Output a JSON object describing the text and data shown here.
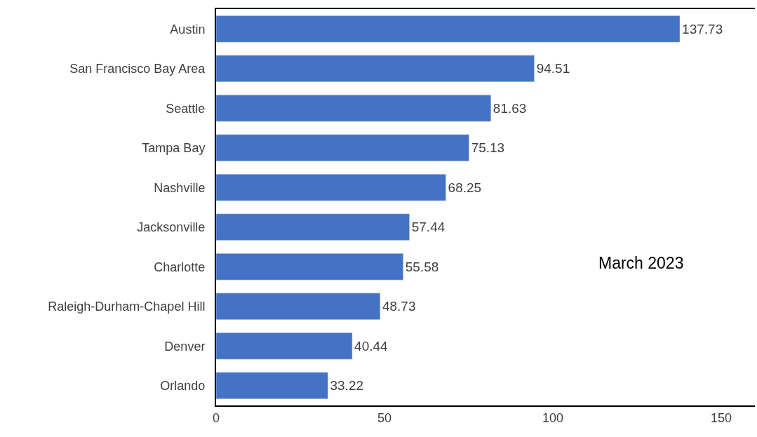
{
  "chart_data": {
    "type": "bar",
    "orientation": "horizontal",
    "categories": [
      "Austin",
      "San Francisco Bay Area",
      "Seattle",
      "Tampa Bay",
      "Nashville",
      "Jacksonville",
      "Charlotte",
      "Raleigh-Durham-Chapel Hill",
      "Denver",
      "Orlando"
    ],
    "values": [
      137.73,
      94.51,
      81.63,
      75.13,
      68.25,
      57.44,
      55.58,
      48.73,
      40.44,
      33.22
    ],
    "color": "#4472c4",
    "xlim": [
      0,
      160
    ],
    "xticks": [
      0,
      50,
      100,
      150
    ],
    "data_labels": true,
    "annotations": [
      "March 2023"
    ]
  }
}
